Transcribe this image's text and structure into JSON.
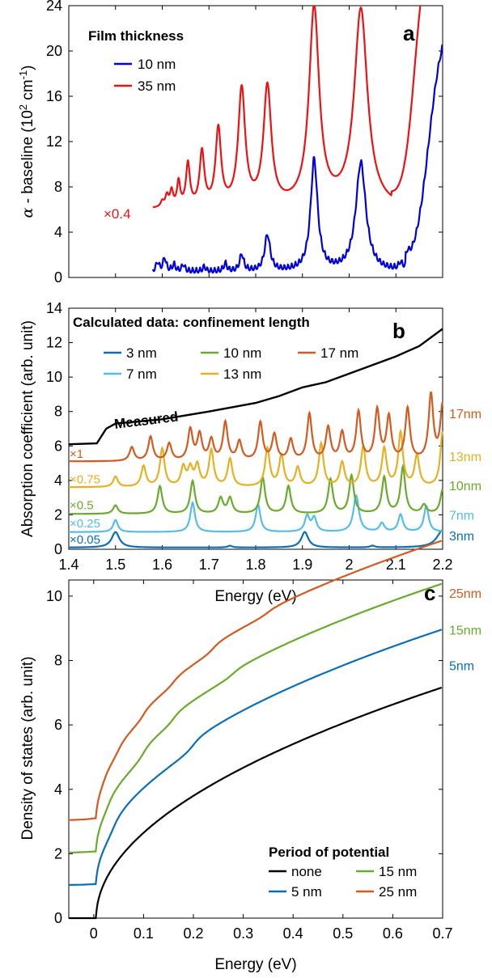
{
  "chart_data": [
    {
      "panel": "a",
      "type": "line",
      "ylabel": "α - baseline (10² cm⁻¹)",
      "ylabel_parts": [
        "α",
        " - baseline (10",
        "2",
        " cm",
        "-1",
        ")"
      ],
      "xlim": [
        1.4,
        2.2
      ],
      "ylim": [
        0,
        24
      ],
      "y_ticks": [
        0,
        4,
        8,
        12,
        16,
        20,
        24
      ],
      "x_ticks": [
        1.4,
        1.5,
        1.6,
        1.7,
        1.8,
        1.9,
        2.0,
        2.1,
        2.2
      ],
      "x_tick_labels_shown": false,
      "legend_title": "Film thickness",
      "legend_position": "top-left",
      "annotation": "×0.4",
      "series": [
        {
          "name": "10 nm",
          "color": "#0000dd",
          "baseline": 0.8,
          "start": 1.58,
          "end": 2.2,
          "peaks": [
            [
              1.59,
              0.8,
              0.004
            ],
            [
              1.605,
              1.2,
              0.004
            ],
            [
              1.625,
              0.6,
              0.004
            ],
            [
              1.645,
              0.6,
              0.004
            ],
            [
              1.69,
              0.4,
              0.004
            ],
            [
              1.735,
              0.7,
              0.004
            ],
            [
              1.77,
              1.5,
              0.005
            ],
            [
              1.825,
              3.2,
              0.007
            ],
            [
              1.925,
              9.8,
              0.009
            ],
            [
              2.025,
              9.6,
              0.013
            ],
            [
              2.11,
              0.6,
              0.005
            ],
            [
              2.125,
              0.7,
              0.005
            ]
          ],
          "edge": [
            2.17,
            22.5,
            0.015
          ]
        },
        {
          "name": "35 nm",
          "color": "#ee1111",
          "baseline": 6.0,
          "start": 1.58,
          "end": 2.17,
          "peaks": [
            [
              1.6,
              0.5,
              0.004
            ],
            [
              1.61,
              1.0,
              0.004
            ],
            [
              1.62,
              1.4,
              0.004
            ],
            [
              1.635,
              2.2,
              0.004
            ],
            [
              1.655,
              3.8,
              0.005
            ],
            [
              1.685,
              4.8,
              0.006
            ],
            [
              1.72,
              6.8,
              0.007
            ],
            [
              1.77,
              10.3,
              0.009
            ],
            [
              1.825,
              10.5,
              0.01
            ],
            [
              1.925,
              17.5,
              0.013
            ],
            [
              2.025,
              17.5,
              0.017
            ]
          ],
          "edge": [
            2.14,
            24,
            0.012
          ]
        }
      ]
    },
    {
      "panel": "b",
      "type": "line",
      "xlabel": "Energy (eV)",
      "ylabel": "Absorption coefficient (arb. unit)",
      "xlim": [
        1.4,
        2.2
      ],
      "ylim": [
        0,
        14
      ],
      "x_ticks": [
        1.4,
        1.5,
        1.6,
        1.7,
        1.8,
        1.9,
        2.0,
        2.1,
        2.2
      ],
      "x_tick_labels": [
        "1.4",
        "1.5",
        "1.6",
        "1.7",
        "1.8",
        "1.9",
        "2",
        "2.1",
        "2.2"
      ],
      "y_ticks": [
        0,
        2,
        4,
        6,
        8,
        10,
        12,
        14
      ],
      "legend_title": "Calculated data: confinement length",
      "legend_position": "top",
      "measured_label": "Measured",
      "measured": {
        "color": "#000000",
        "points": [
          [
            1.4,
            6.1
          ],
          [
            1.46,
            6.15
          ],
          [
            1.48,
            7.0
          ],
          [
            1.5,
            7.3
          ],
          [
            1.6,
            7.55
          ],
          [
            1.7,
            8.0
          ],
          [
            1.8,
            8.5
          ],
          [
            1.85,
            8.9
          ],
          [
            1.9,
            9.4
          ],
          [
            1.95,
            9.7
          ],
          [
            2.0,
            10.2
          ],
          [
            2.05,
            10.7
          ],
          [
            2.1,
            11.2
          ],
          [
            2.15,
            11.8
          ],
          [
            2.2,
            12.8
          ]
        ]
      },
      "series": [
        {
          "name": "3 nm",
          "color": "#0b6fb8",
          "offset": 0.1,
          "scale_label": "×0.05",
          "right_label": "3nm",
          "peaks": [
            [
              1.5,
              0.9,
              0.01
            ],
            [
              1.745,
              0.1,
              0.006
            ],
            [
              1.905,
              0.9,
              0.009
            ],
            [
              2.05,
              0.1,
              0.006
            ],
            [
              2.2,
              1.0,
              0.015
            ]
          ]
        },
        {
          "name": "7 nm",
          "color": "#55bde8",
          "offset": 1.0,
          "scale_label": "×0.25",
          "right_label": "7nm",
          "peaks": [
            [
              1.5,
              0.7,
              0.006
            ],
            [
              1.665,
              1.7,
              0.006
            ],
            [
              1.805,
              1.6,
              0.006
            ],
            [
              1.91,
              0.9,
              0.006
            ],
            [
              1.925,
              0.8,
              0.006
            ],
            [
              2.015,
              2.1,
              0.007
            ],
            [
              2.07,
              0.5,
              0.006
            ],
            [
              2.11,
              1.0,
              0.006
            ],
            [
              2.165,
              1.5,
              0.006
            ]
          ]
        },
        {
          "name": "10 nm",
          "color": "#6aaa2c",
          "offset": 2.05,
          "scale_label": "×0.5",
          "right_label": "10nm",
          "peaks": [
            [
              1.5,
              0.5,
              0.006
            ],
            [
              1.595,
              1.6,
              0.006
            ],
            [
              1.665,
              1.9,
              0.006
            ],
            [
              1.725,
              0.9,
              0.006
            ],
            [
              1.745,
              0.9,
              0.006
            ],
            [
              1.815,
              2.1,
              0.006
            ],
            [
              1.87,
              1.6,
              0.006
            ],
            [
              1.96,
              2.0,
              0.006
            ],
            [
              2.005,
              2.2,
              0.006
            ],
            [
              2.075,
              2.1,
              0.006
            ],
            [
              2.115,
              2.7,
              0.006
            ],
            [
              2.16,
              0.5,
              0.006
            ],
            [
              2.2,
              1.4,
              0.006
            ]
          ]
        },
        {
          "name": "13 nm",
          "color": "#e6b022",
          "offset": 3.6,
          "scale_label": "×0.75",
          "right_label": "13nm",
          "peaks": [
            [
              1.5,
              0.6,
              0.006
            ],
            [
              1.56,
              1.2,
              0.006
            ],
            [
              1.6,
              2.2,
              0.006
            ],
            [
              1.645,
              1.1,
              0.006
            ],
            [
              1.66,
              1.0,
              0.006
            ],
            [
              1.675,
              1.2,
              0.006
            ],
            [
              1.705,
              2.1,
              0.006
            ],
            [
              1.745,
              1.6,
              0.006
            ],
            [
              1.825,
              2.2,
              0.006
            ],
            [
              1.855,
              1.8,
              0.006
            ],
            [
              1.89,
              1.1,
              0.006
            ],
            [
              1.94,
              2.5,
              0.006
            ],
            [
              1.985,
              1.4,
              0.006
            ],
            [
              2.03,
              2.3,
              0.006
            ],
            [
              2.075,
              2.2,
              0.006
            ],
            [
              2.11,
              3.1,
              0.006
            ],
            [
              2.145,
              1.8,
              0.006
            ],
            [
              2.2,
              3.2,
              0.006
            ]
          ]
        },
        {
          "name": "17 nm",
          "color": "#d45a20",
          "offset": 5.1,
          "scale_label": "×1",
          "right_label": "17nm",
          "peaks": [
            [
              1.535,
              0.8,
              0.006
            ],
            [
              1.575,
              1.4,
              0.006
            ],
            [
              1.615,
              1.0,
              0.006
            ],
            [
              1.66,
              1.8,
              0.006
            ],
            [
              1.68,
              1.5,
              0.006
            ],
            [
              1.705,
              1.2,
              0.006
            ],
            [
              1.735,
              2.2,
              0.006
            ],
            [
              1.765,
              1.1,
              0.006
            ],
            [
              1.81,
              2.2,
              0.006
            ],
            [
              1.84,
              1.5,
              0.006
            ],
            [
              1.875,
              1.2,
              0.006
            ],
            [
              1.915,
              2.7,
              0.006
            ],
            [
              1.955,
              1.9,
              0.006
            ],
            [
              1.985,
              1.6,
              0.006
            ],
            [
              2.02,
              2.8,
              0.006
            ],
            [
              2.06,
              2.9,
              0.006
            ],
            [
              2.085,
              2.5,
              0.006
            ],
            [
              2.125,
              3.0,
              0.006
            ],
            [
              2.175,
              3.8,
              0.006
            ],
            [
              2.2,
              3.2,
              0.006
            ]
          ]
        }
      ]
    },
    {
      "panel": "c",
      "type": "line",
      "xlabel": "Energy (eV)",
      "ylabel": "Density of states (arb. unit)",
      "xlim": [
        -0.05,
        0.7
      ],
      "ylim": [
        0,
        10.5
      ],
      "x_ticks": [
        0,
        0.1,
        0.2,
        0.3,
        0.4,
        0.5,
        0.6,
        0.7
      ],
      "x_tick_labels": [
        "0",
        "0.1",
        "0.2",
        "0.3",
        "0.4",
        "0.5",
        "0.6",
        "0.7"
      ],
      "y_ticks": [
        0,
        2,
        4,
        6,
        8,
        10
      ],
      "legend_title": "Period of potential",
      "legend_position": "bottom-right",
      "series": [
        {
          "name": "none",
          "color": "#000000",
          "offset": 0,
          "steps": [],
          "right_label": ""
        },
        {
          "name": "5 nm",
          "color": "#0b6fb8",
          "offset": 1.0,
          "steps": [
            [
              0.04,
              0.5,
              0.012
            ],
            [
              0.2,
              0.45,
              0.015
            ]
          ],
          "right_label": "5nm"
        },
        {
          "name": "15 nm",
          "color": "#6aaa2c",
          "offset": 2.0,
          "steps": [
            [
              0.03,
              0.4,
              0.01
            ],
            [
              0.1,
              0.45,
              0.012
            ],
            [
              0.16,
              0.35,
              0.012
            ],
            [
              0.28,
              0.25,
              0.015
            ]
          ],
          "right_label": "15nm"
        },
        {
          "name": "25 nm",
          "color": "#d45a20",
          "offset": 3.0,
          "steps": [
            [
              0.02,
              0.35,
              0.01
            ],
            [
              0.05,
              0.35,
              0.01
            ],
            [
              0.1,
              0.35,
              0.01
            ],
            [
              0.16,
              0.3,
              0.012
            ],
            [
              0.24,
              0.3,
              0.012
            ],
            [
              0.35,
              0.2,
              0.015
            ]
          ],
          "right_label": "25nm"
        }
      ]
    }
  ],
  "panel_letters": [
    "a",
    "b",
    "c"
  ]
}
